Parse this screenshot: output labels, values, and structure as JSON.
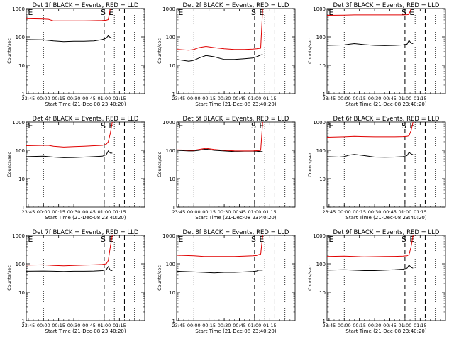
{
  "figure": {
    "colors": {
      "background": "#ffffff",
      "axes": "#000000",
      "events": "#000000",
      "lld": "#e00000"
    }
  },
  "chart_data": [
    {
      "type": "line",
      "title": "Det 1f BLACK = Events, RED = LLD",
      "xlabel": "Start Time (21-Dec-08 23:40:20)",
      "ylabel": "Counts/sec",
      "xtick_labels": [
        "23:45",
        "00:00",
        "00:15",
        "00:30",
        "00:45",
        "01:00",
        "01:15"
      ],
      "ytick_labels": [
        "1",
        "10",
        "100",
        "1000"
      ],
      "y_log_scale": true,
      "ylim": [
        1,
        1000
      ],
      "xlim_minutes": [
        -17,
        100
      ],
      "marker_labels": [
        "E",
        "S",
        "E"
      ],
      "series": [
        {
          "name": "Events",
          "color": "#000000",
          "x": [
            -17,
            0,
            10,
            20,
            30,
            40,
            50,
            58,
            62,
            64,
            66,
            68
          ],
          "y": [
            80,
            78,
            72,
            68,
            70,
            70,
            72,
            80,
            90,
            110,
            95,
            90
          ]
        },
        {
          "name": "LLD",
          "color": "#e00000",
          "x": [
            -17,
            0,
            5,
            10,
            20,
            30,
            40,
            50,
            58,
            62,
            64,
            66,
            68
          ],
          "y": [
            440,
            430,
            420,
            370,
            370,
            370,
            370,
            375,
            380,
            390,
            410,
            1000,
            1000
          ]
        }
      ]
    },
    {
      "type": "line",
      "title": "Det 2f BLACK = Events, RED = LLD",
      "xlabel": "Start Time (21-Dec-08 23:40:20)",
      "ylabel": "Counts/sec",
      "xtick_labels": [
        "23:45",
        "00:00",
        "00:15",
        "00:30",
        "00:45",
        "01:00",
        "01:15"
      ],
      "ytick_labels": [
        "1",
        "10",
        "100",
        "1000"
      ],
      "y_log_scale": true,
      "ylim": [
        1,
        1000
      ],
      "xlim_minutes": [
        -17,
        100
      ],
      "marker_labels": [
        "E",
        "S",
        "E"
      ],
      "series": [
        {
          "name": "Events",
          "color": "#000000",
          "x": [
            -17,
            -5,
            0,
            5,
            12,
            20,
            30,
            40,
            50,
            58,
            62,
            66,
            68
          ],
          "y": [
            16,
            14,
            15,
            18,
            22,
            20,
            16,
            16,
            17,
            18,
            20,
            23,
            24
          ]
        },
        {
          "name": "LLD",
          "color": "#e00000",
          "x": [
            -17,
            -5,
            0,
            5,
            12,
            20,
            30,
            40,
            50,
            58,
            62,
            66,
            68
          ],
          "y": [
            36,
            34,
            36,
            42,
            46,
            42,
            38,
            36,
            36,
            37,
            38,
            40,
            1000
          ]
        }
      ]
    },
    {
      "type": "line",
      "title": "Det 3f BLACK = Events, RED = LLD",
      "xlabel": "Start Time (21-Dec-08 23:40:20)",
      "ylabel": "Counts/sec",
      "xtick_labels": [
        "23:45",
        "00:00",
        "00:15",
        "00:30",
        "00:45",
        "01:00",
        "01:15"
      ],
      "ytick_labels": [
        "1",
        "10",
        "100",
        "1000"
      ],
      "y_log_scale": true,
      "ylim": [
        1,
        1000
      ],
      "xlim_minutes": [
        -17,
        100
      ],
      "marker_labels": [
        "E",
        "S",
        "E"
      ],
      "series": [
        {
          "name": "Events",
          "color": "#000000",
          "x": [
            -17,
            0,
            5,
            10,
            20,
            30,
            40,
            50,
            58,
            62,
            64,
            66,
            68
          ],
          "y": [
            50,
            52,
            55,
            58,
            53,
            50,
            49,
            50,
            52,
            55,
            75,
            60,
            58
          ]
        },
        {
          "name": "LLD",
          "color": "#e00000",
          "x": [
            -17,
            0,
            10,
            20,
            30,
            40,
            50,
            58,
            62,
            64,
            66,
            68
          ],
          "y": [
            580,
            590,
            600,
            600,
            600,
            600,
            600,
            600,
            610,
            620,
            1000,
            1000
          ]
        }
      ]
    },
    {
      "type": "line",
      "title": "Det 4f BLACK = Events, RED = LLD",
      "xlabel": "Start Time (21-Dec-08 23:40:20)",
      "ylabel": "Counts/sec",
      "xtick_labels": [
        "23:45",
        "00:00",
        "00:15",
        "00:30",
        "00:45",
        "01:00",
        "01:15"
      ],
      "ytick_labels": [
        "1",
        "10",
        "100",
        "1000"
      ],
      "y_log_scale": true,
      "ylim": [
        1,
        1000
      ],
      "xlim_minutes": [
        -17,
        100
      ],
      "marker_labels": [
        "E",
        "S",
        "E"
      ],
      "series": [
        {
          "name": "Events",
          "color": "#000000",
          "x": [
            -17,
            0,
            10,
            20,
            30,
            40,
            50,
            58,
            62,
            64,
            66,
            68
          ],
          "y": [
            60,
            62,
            58,
            55,
            56,
            58,
            60,
            62,
            70,
            95,
            80,
            80
          ]
        },
        {
          "name": "LLD",
          "color": "#e00000",
          "x": [
            -17,
            0,
            5,
            10,
            20,
            30,
            40,
            50,
            58,
            62,
            64,
            66,
            68
          ],
          "y": [
            145,
            150,
            150,
            140,
            130,
            135,
            140,
            145,
            150,
            165,
            200,
            400,
            1000
          ]
        }
      ]
    },
    {
      "type": "line",
      "title": "Det 5f BLACK = Events, RED = LLD",
      "xlabel": "Start Time (21-Dec-08 23:40:20)",
      "ylabel": "Counts/sec",
      "xtick_labels": [
        "23:45",
        "00:00",
        "00:15",
        "00:30",
        "00:45",
        "01:00",
        "01:15"
      ],
      "ytick_labels": [
        "1",
        "10",
        "100",
        "1000"
      ],
      "y_log_scale": true,
      "ylim": [
        1,
        1000
      ],
      "xlim_minutes": [
        -17,
        100
      ],
      "marker_labels": [
        "E",
        "S",
        "E"
      ],
      "series": [
        {
          "name": "Events",
          "color": "#000000",
          "x": [
            -17,
            -5,
            0,
            5,
            12,
            20,
            30,
            40,
            50,
            58,
            62,
            64,
            66,
            68
          ],
          "y": [
            100,
            95,
            95,
            100,
            110,
            100,
            95,
            90,
            88,
            88,
            90,
            92,
            90,
            90
          ]
        },
        {
          "name": "LLD",
          "color": "#e00000",
          "x": [
            -17,
            -5,
            0,
            5,
            12,
            20,
            30,
            40,
            50,
            58,
            62,
            64,
            66,
            68
          ],
          "y": [
            105,
            100,
            100,
            108,
            118,
            108,
            100,
            96,
            95,
            95,
            97,
            98,
            100,
            1000
          ]
        }
      ]
    },
    {
      "type": "line",
      "title": "Det 6f BLACK = Events, RED = LLD",
      "xlabel": "Start Time (21-Dec-08 23:40:20)",
      "ylabel": "Counts/sec",
      "xtick_labels": [
        "23:45",
        "00:00",
        "00:15",
        "00:30",
        "00:45",
        "01:00",
        "01:15"
      ],
      "ytick_labels": [
        "1",
        "10",
        "100",
        "1000"
      ],
      "y_log_scale": true,
      "ylim": [
        1,
        1000
      ],
      "xlim_minutes": [
        -17,
        100
      ],
      "marker_labels": [
        "E",
        "S",
        "E"
      ],
      "series": [
        {
          "name": "Events",
          "color": "#000000",
          "x": [
            -17,
            -5,
            0,
            5,
            10,
            20,
            30,
            40,
            50,
            58,
            62,
            64,
            66,
            68
          ],
          "y": [
            60,
            58,
            60,
            68,
            72,
            65,
            58,
            57,
            58,
            60,
            65,
            85,
            75,
            70
          ]
        },
        {
          "name": "LLD",
          "color": "#e00000",
          "x": [
            -17,
            0,
            10,
            20,
            30,
            40,
            50,
            58,
            62,
            64,
            66,
            68
          ],
          "y": [
            290,
            300,
            310,
            305,
            300,
            300,
            300,
            305,
            310,
            330,
            500,
            1000
          ]
        }
      ]
    },
    {
      "type": "line",
      "title": "Det 7f BLACK = Events, RED = LLD",
      "xlabel": "Start Time (21-Dec-08 23:40:20)",
      "ylabel": "Counts/sec",
      "xtick_labels": [
        "23:45",
        "00:00",
        "00:15",
        "00:30",
        "00:45",
        "01:00",
        "01:15"
      ],
      "ytick_labels": [
        "1",
        "10",
        "100",
        "1000"
      ],
      "y_log_scale": true,
      "ylim": [
        1,
        1000
      ],
      "xlim_minutes": [
        -17,
        100
      ],
      "marker_labels": [
        "E",
        "S",
        "E"
      ],
      "series": [
        {
          "name": "Events",
          "color": "#000000",
          "x": [
            -17,
            0,
            10,
            20,
            30,
            40,
            50,
            58,
            62,
            64,
            66,
            68
          ],
          "y": [
            55,
            56,
            55,
            54,
            55,
            55,
            56,
            58,
            62,
            80,
            60,
            58
          ]
        },
        {
          "name": "LLD",
          "color": "#e00000",
          "x": [
            -17,
            0,
            10,
            20,
            30,
            40,
            50,
            58,
            62,
            64,
            66,
            68
          ],
          "y": [
            90,
            92,
            88,
            85,
            88,
            90,
            92,
            95,
            100,
            130,
            400,
            1000
          ]
        }
      ]
    },
    {
      "type": "line",
      "title": "Det 8f BLACK = Events, RED = LLD",
      "xlabel": "Start Time (21-Dec-08 23:40:20)",
      "ylabel": "Counts/sec",
      "xtick_labels": [
        "23:45",
        "00:00",
        "00:15",
        "00:30",
        "00:45",
        "01:00",
        "01:15"
      ],
      "ytick_labels": [
        "1",
        "10",
        "100",
        "1000"
      ],
      "y_log_scale": true,
      "ylim": [
        1,
        1000
      ],
      "xlim_minutes": [
        -17,
        100
      ],
      "marker_labels": [
        "E",
        "S",
        "E"
      ],
      "series": [
        {
          "name": "Events",
          "color": "#000000",
          "x": [
            -17,
            0,
            10,
            20,
            30,
            40,
            50,
            58,
            62,
            64,
            66,
            68
          ],
          "y": [
            55,
            52,
            50,
            48,
            50,
            50,
            52,
            54,
            56,
            60,
            60,
            60
          ]
        },
        {
          "name": "LLD",
          "color": "#e00000",
          "x": [
            -17,
            0,
            10,
            20,
            30,
            40,
            50,
            58,
            62,
            64,
            66,
            68
          ],
          "y": [
            200,
            190,
            180,
            180,
            180,
            180,
            185,
            190,
            195,
            210,
            220,
            1000
          ]
        }
      ]
    },
    {
      "type": "line",
      "title": "Det 9f BLACK = Events, RED = LLD",
      "xlabel": "Start Time (21-Dec-08 23:40:20)",
      "ylabel": "Counts/sec",
      "xtick_labels": [
        "23:45",
        "00:00",
        "00:15",
        "00:30",
        "00:45",
        "01:00",
        "01:15"
      ],
      "ytick_labels": [
        "1",
        "10",
        "100",
        "1000"
      ],
      "y_log_scale": true,
      "ylim": [
        1,
        1000
      ],
      "xlim_minutes": [
        -17,
        100
      ],
      "marker_labels": [
        "E",
        "S",
        "E"
      ],
      "series": [
        {
          "name": "Events",
          "color": "#000000",
          "x": [
            -17,
            0,
            10,
            20,
            30,
            40,
            50,
            58,
            62,
            64,
            66,
            68
          ],
          "y": [
            60,
            62,
            60,
            58,
            58,
            60,
            62,
            65,
            70,
            90,
            75,
            70
          ]
        },
        {
          "name": "LLD",
          "color": "#e00000",
          "x": [
            -17,
            0,
            10,
            20,
            30,
            40,
            50,
            58,
            62,
            64,
            66,
            68
          ],
          "y": [
            180,
            185,
            180,
            175,
            178,
            180,
            182,
            185,
            190,
            210,
            400,
            1000
          ]
        }
      ]
    }
  ]
}
